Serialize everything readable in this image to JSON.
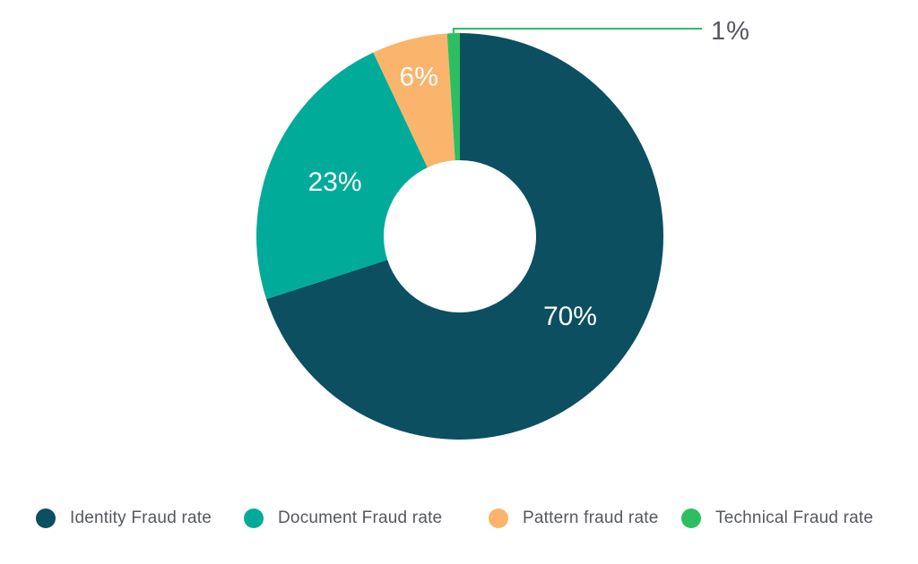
{
  "chart_data": {
    "type": "pie",
    "subtype": "donut",
    "title": "",
    "legend_position": "bottom",
    "background_color": "#ffffff",
    "inside_label_color": "#ffffff",
    "outside_label_color": "#55585f",
    "segments": [
      {
        "label": "Identity Fraud rate",
        "value": 70,
        "display": "70%",
        "color": "#0b4f60"
      },
      {
        "label": "Document Fraud rate",
        "value": 23,
        "display": "23%",
        "color": "#00ab9a"
      },
      {
        "label": "Pattern fraud rate",
        "value": 6,
        "display": "6%",
        "color": "#fab46c"
      },
      {
        "label": "Technical Fraud rate",
        "value": 1,
        "display": "1%",
        "color": "#2ebe62",
        "callout": true
      }
    ]
  }
}
